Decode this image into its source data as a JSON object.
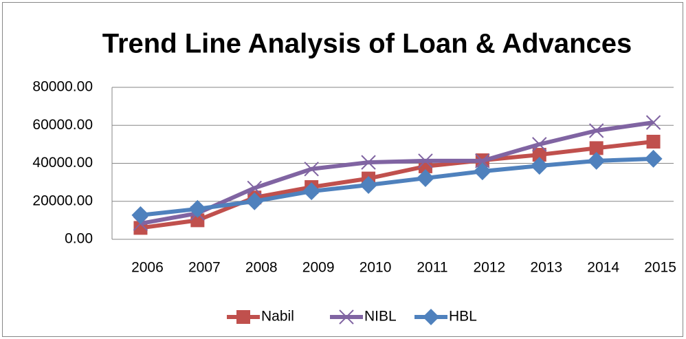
{
  "chart_data": {
    "type": "line",
    "title": "Trend Line Analysis of Loan & Advances",
    "categories": [
      "2006",
      "2007",
      "2008",
      "2009",
      "2010",
      "2011",
      "2012",
      "2013",
      "2014",
      "2015"
    ],
    "series": [
      {
        "name": "Nabil",
        "color": "#c0504d",
        "marker": "square",
        "values": [
          6000,
          10000,
          22000,
          27500,
          32000,
          38400,
          41600,
          44500,
          48000,
          51400
        ]
      },
      {
        "name": "NIBL",
        "color": "#8064a2",
        "marker": "cross",
        "values": [
          8300,
          13700,
          27000,
          37000,
          40500,
          41300,
          41300,
          50000,
          57200,
          61500
        ]
      },
      {
        "name": "HBL",
        "color": "#4f81bd",
        "marker": "diamond",
        "values": [
          12700,
          16000,
          20000,
          25300,
          28600,
          32200,
          35800,
          38700,
          41300,
          42400
        ]
      }
    ],
    "ylim": [
      0,
      80000
    ],
    "yticks": [
      {
        "value": 0,
        "label": "0.00"
      },
      {
        "value": 20000,
        "label": "20000.00"
      },
      {
        "value": 40000,
        "label": "40000.00"
      },
      {
        "value": 60000,
        "label": "60000.00"
      },
      {
        "value": 80000,
        "label": "80000.00"
      }
    ],
    "grid": true,
    "legend": "bottom"
  }
}
